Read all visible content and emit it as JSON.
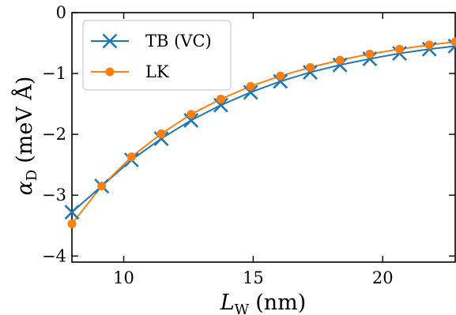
{
  "chart_data": {
    "type": "line",
    "xlabel_symbol": "L",
    "xlabel_subscript": "W",
    "xlabel_unit": "(nm)",
    "ylabel_symbol": "α",
    "ylabel_subscript": "D",
    "ylabel_unit": "(meV Å)",
    "xlim": [
      8.0,
      22.8
    ],
    "ylim": [
      -4.1,
      0.0
    ],
    "xticks": [
      10,
      15,
      20
    ],
    "xtick_labels": [
      "10",
      "15",
      "20"
    ],
    "yticks": [
      0,
      -1,
      -2,
      -3,
      -4
    ],
    "ytick_labels": [
      "0",
      "−1",
      "−2",
      "−3",
      "−4"
    ],
    "grid": false,
    "legend_position": "top-left",
    "series": [
      {
        "name": "TB (VC)",
        "color": "#1f77b4",
        "marker": "x",
        "x": [
          8.0,
          9.15,
          10.3,
          11.45,
          12.6,
          13.75,
          14.9,
          16.05,
          17.2,
          18.35,
          19.5,
          20.65,
          21.8,
          22.8
        ],
        "y": [
          -3.28,
          -2.85,
          -2.42,
          -2.07,
          -1.77,
          -1.52,
          -1.31,
          -1.13,
          -0.98,
          -0.86,
          -0.76,
          -0.67,
          -0.6,
          -0.55
        ]
      },
      {
        "name": "LK",
        "color": "#ff7f0e",
        "marker": "o",
        "x": [
          8.0,
          9.15,
          10.3,
          11.45,
          12.6,
          13.75,
          14.9,
          16.05,
          17.2,
          18.35,
          19.5,
          20.65,
          21.8,
          22.8
        ],
        "y": [
          -3.47,
          -2.85,
          -2.37,
          -1.99,
          -1.67,
          -1.42,
          -1.21,
          -1.04,
          -0.9,
          -0.78,
          -0.68,
          -0.6,
          -0.53,
          -0.48
        ]
      }
    ]
  }
}
